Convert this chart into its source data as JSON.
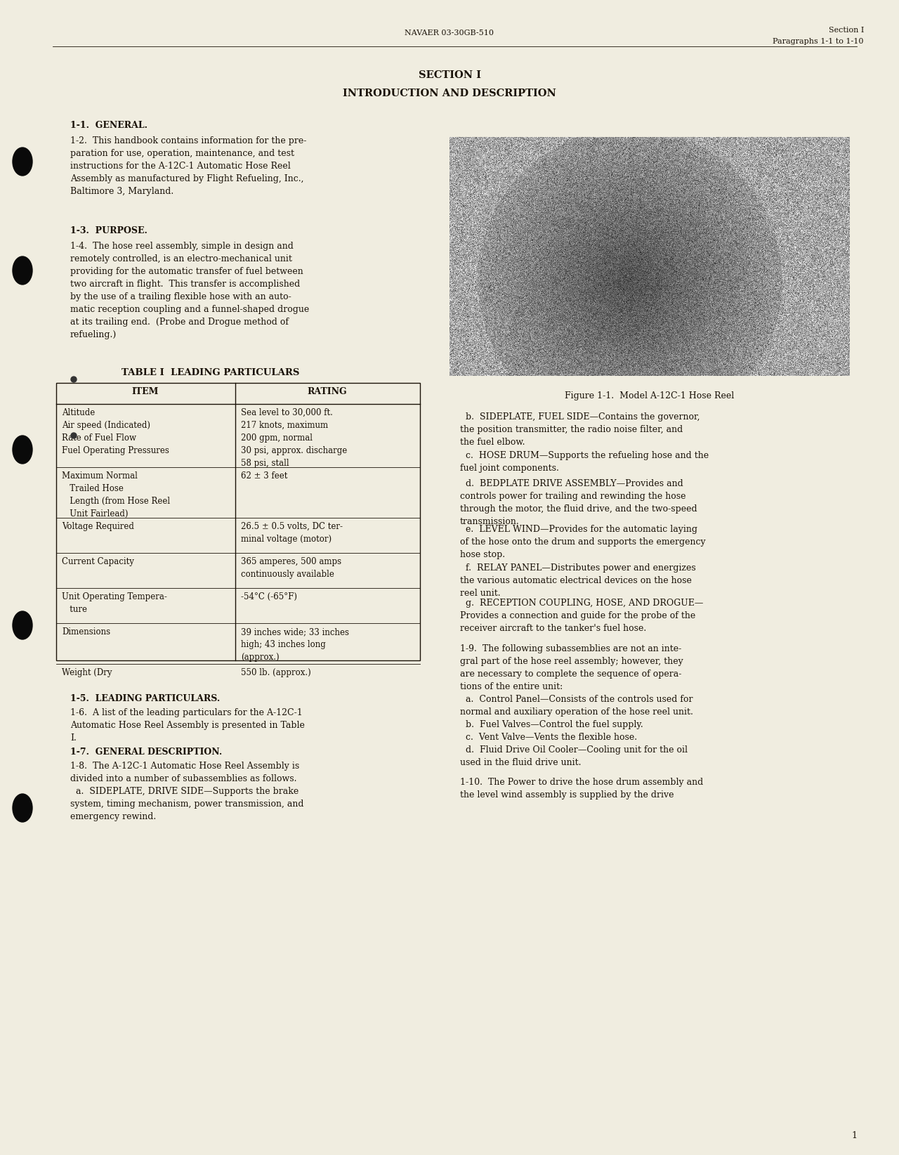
{
  "page_bg": "#f0ede0",
  "text_color": "#1a1208",
  "page_width": 12.8,
  "page_height": 16.44,
  "header_left": "NAVAER 03-30GB-510",
  "header_right_line1": "Section I",
  "header_right_line2": "Paragraphs 1-1 to 1-10",
  "section_title": "SECTION I",
  "section_subtitle": "INTRODUCTION AND DESCRIPTION",
  "heading1_1": "1-1.  GENERAL.",
  "para1_2": "1-2.  This handbook contains information for the pre-\nparation for use, operation, maintenance, and test\ninstructions for the A-12C-1 Automatic Hose Reel\nAssembly as manufactured by Flight Refueling, Inc.,\nBaltimore 3, Maryland.",
  "heading1_3": "1-3.  PURPOSE.",
  "para1_4": "1-4.  The hose reel assembly, simple in design and\nremotely controlled, is an electro-mechanical unit\nproviding for the automatic transfer of fuel between\ntwo aircraft in flight.  This transfer is accomplished\nby the use of a trailing flexible hose with an auto-\nmatic reception coupling and a funnel-shaped drogue\nat its trailing end.  (Probe and Drogue method of\nrefueling.)",
  "table_title": "TABLE I  LEADING PARTICULARS",
  "table_col1": "ITEM",
  "table_col2": "RATING",
  "table_rows": [
    [
      "Altitude\nAir speed (Indicated)\nRate of Fuel Flow\nFuel Operating Pressures",
      "Sea level to 30,000 ft.\n217 knots, maximum\n200 gpm, normal\n30 psi, approx. discharge\n58 psi, stall"
    ],
    [
      "Maximum Normal\n   Trailed Hose\n   Length (from Hose Reel\n   Unit Fairlead)",
      "62 ± 3 feet"
    ],
    [
      "Voltage Required",
      "26.5 ± 0.5 volts, DC ter-\nminal voltage (motor)"
    ],
    [
      "Current Capacity",
      "365 amperes, 500 amps\ncontinuously available"
    ],
    [
      "Unit Operating Tempera-\n   ture",
      "-54°C (-65°F)"
    ],
    [
      "Dimensions",
      "39 inches wide; 33 inches\nhigh; 43 inches long\n(approx.)"
    ],
    [
      "Weight (Dry",
      "550 lb. (approx.)"
    ]
  ],
  "heading1_5": "1-5.  LEADING PARTICULARS.",
  "para1_6": "1-6.  A list of the leading particulars for the A-12C-1\nAutomatic Hose Reel Assembly is presented in Table\nI.",
  "heading1_7": "1-7.  GENERAL DESCRIPTION.",
  "para1_8": "1-8.  The A-12C-1 Automatic Hose Reel Assembly is\ndivided into a number of subassemblies as follows.\n  a.  SIDEPLATE, DRIVE SIDE—Supports the brake\nsystem, timing mechanism, power transmission, and\nemergency rewind.",
  "fig_caption": "Figure 1-1.  Model A-12C-1 Hose Reel",
  "right_para_b": "  b.  SIDEPLATE, FUEL SIDE—Contains the governor,\nthe position transmitter, the radio noise filter, and\nthe fuel elbow.",
  "right_para_c": "  c.  HOSE DRUM—Supports the refueling hose and the\nfuel joint components.",
  "right_para_d": "  d.  BEDPLATE DRIVE ASSEMBLY—Provides and\ncontrols power for trailing and rewinding the hose\nthrough the motor, the fluid drive, and the two-speed\ntransmission.",
  "right_para_e": "  e.  LEVEL WIND—Provides for the automatic laying\nof the hose onto the drum and supports the emergency\nhose stop.",
  "right_para_f": "  f.  RELAY PANEL—Distributes power and energizes\nthe various automatic electrical devices on the hose\nreel unit.",
  "right_para_g": "  g.  RECEPTION COUPLING, HOSE, AND DROGUE—\nProvides a connection and guide for the probe of the\nreceiver aircraft to the tanker's fuel hose.",
  "para1_9": "1-9.  The following subassemblies are not an inte-\ngral part of the hose reel assembly; however, they\nare necessary to complete the sequence of opera-\ntions of the entire unit:\n  a.  Control Panel—Consists of the controls used for\nnormal and auxiliary operation of the hose reel unit.\n  b.  Fuel Valves—Control the fuel supply.\n  c.  Vent Valve—Vents the flexible hose.\n  d.  Fluid Drive Oil Cooler—Cooling unit for the oil\nused in the fluid drive unit.",
  "para1_10": "1-10.  The Power to drive the hose drum assembly and\nthe level wind assembly is supplied by the drive",
  "page_number": "1"
}
